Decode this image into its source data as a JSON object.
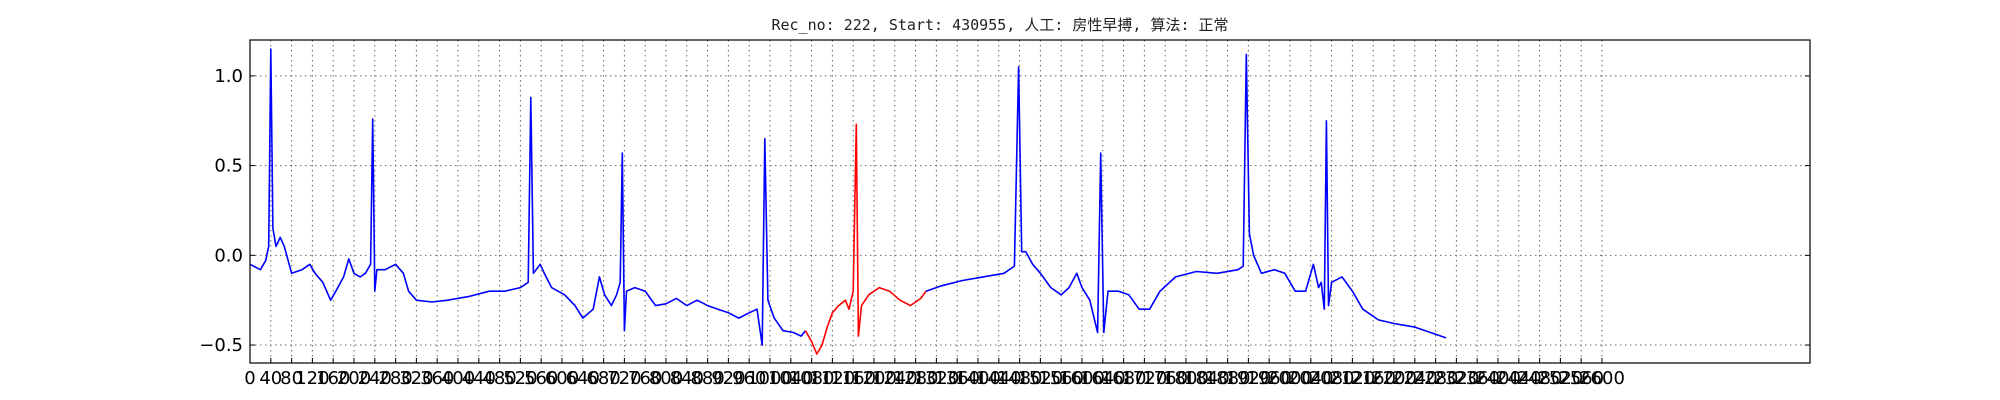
{
  "chart_data": {
    "type": "line",
    "title": "Rec_no: 222, Start: 430955, 人工: 房性早搏, 算法: 正常",
    "xlabel": "",
    "ylabel": "",
    "xlim": [
      0,
      3000
    ],
    "ylim": [
      -0.6,
      1.2
    ],
    "grid": true,
    "legend": "none",
    "yticks": [
      -0.5,
      0.0,
      0.5,
      1.0
    ],
    "ytick_labels": [
      "−0.5",
      "0.0",
      "0.5",
      "1.0"
    ],
    "xtick_labels": [
      "0",
      "40",
      "80",
      "120",
      "160",
      "200",
      "240",
      "280",
      "320",
      "360",
      "400",
      "440",
      "480",
      "520",
      "560",
      "600",
      "640",
      "680",
      "720",
      "760",
      "800",
      "840",
      "880",
      "920",
      "960",
      "1000",
      "1040",
      "1080",
      "1120",
      "1160",
      "1200",
      "1240",
      "1280",
      "1320",
      "1360",
      "1400",
      "1440",
      "1480",
      "1520",
      "1560",
      "1600",
      "1640",
      "1680",
      "1720",
      "1760",
      "1800",
      "1840",
      "1880",
      "1920",
      "1960",
      "2000",
      "2040",
      "2080",
      "2120",
      "2160",
      "2200",
      "2240",
      "2280",
      "2320",
      "2360",
      "2400",
      "2440",
      "2480",
      "2520",
      "2560",
      "2600"
    ],
    "colors": {
      "normal": "#0000ff",
      "highlight": "#ff0000"
    },
    "series": [
      {
        "color": "#0000ff",
        "points": [
          [
            0,
            -0.05
          ],
          [
            20,
            -0.08
          ],
          [
            30,
            -0.03
          ],
          [
            36,
            0.05
          ],
          [
            40,
            1.15
          ],
          [
            44,
            0.15
          ],
          [
            50,
            0.05
          ],
          [
            58,
            0.1
          ],
          [
            66,
            0.05
          ],
          [
            80,
            -0.1
          ],
          [
            100,
            -0.08
          ],
          [
            115,
            -0.05
          ],
          [
            125,
            -0.1
          ],
          [
            140,
            -0.15
          ],
          [
            155,
            -0.25
          ],
          [
            165,
            -0.2
          ],
          [
            180,
            -0.12
          ],
          [
            190,
            -0.02
          ],
          [
            200,
            -0.1
          ],
          [
            212,
            -0.12
          ],
          [
            222,
            -0.1
          ],
          [
            232,
            -0.05
          ],
          [
            236,
            0.76
          ],
          [
            240,
            -0.2
          ],
          [
            244,
            -0.08
          ],
          [
            260,
            -0.08
          ],
          [
            280,
            -0.05
          ],
          [
            295,
            -0.1
          ],
          [
            305,
            -0.2
          ],
          [
            320,
            -0.25
          ],
          [
            350,
            -0.26
          ],
          [
            380,
            -0.25
          ],
          [
            420,
            -0.23
          ],
          [
            460,
            -0.2
          ],
          [
            490,
            -0.2
          ],
          [
            520,
            -0.18
          ],
          [
            535,
            -0.15
          ],
          [
            540,
            0.88
          ],
          [
            545,
            -0.1
          ],
          [
            558,
            -0.05
          ],
          [
            566,
            -0.1
          ],
          [
            580,
            -0.18
          ],
          [
            605,
            -0.22
          ],
          [
            625,
            -0.28
          ],
          [
            640,
            -0.35
          ],
          [
            660,
            -0.3
          ],
          [
            672,
            -0.12
          ],
          [
            682,
            -0.22
          ],
          [
            695,
            -0.28
          ],
          [
            705,
            -0.22
          ],
          [
            712,
            -0.15
          ],
          [
            716,
            0.57
          ],
          [
            720,
            -0.42
          ],
          [
            724,
            -0.2
          ],
          [
            740,
            -0.18
          ],
          [
            760,
            -0.2
          ],
          [
            780,
            -0.28
          ],
          [
            800,
            -0.27
          ],
          [
            820,
            -0.24
          ],
          [
            840,
            -0.28
          ],
          [
            860,
            -0.25
          ],
          [
            880,
            -0.28
          ],
          [
            900,
            -0.3
          ],
          [
            920,
            -0.32
          ],
          [
            940,
            -0.35
          ],
          [
            960,
            -0.32
          ],
          [
            975,
            -0.3
          ],
          [
            985,
            -0.5
          ],
          [
            990,
            0.65
          ],
          [
            996,
            -0.25
          ],
          [
            1008,
            -0.35
          ],
          [
            1025,
            -0.42
          ],
          [
            1045,
            -0.43
          ],
          [
            1060,
            -0.45
          ],
          [
            1068,
            -0.42
          ]
        ]
      },
      {
        "color": "#ff0000",
        "points": [
          [
            1068,
            -0.42
          ],
          [
            1080,
            -0.48
          ],
          [
            1090,
            -0.55
          ],
          [
            1100,
            -0.5
          ],
          [
            1110,
            -0.4
          ],
          [
            1120,
            -0.32
          ],
          [
            1132,
            -0.28
          ],
          [
            1145,
            -0.25
          ],
          [
            1152,
            -0.3
          ],
          [
            1160,
            -0.2
          ],
          [
            1166,
            0.73
          ],
          [
            1170,
            -0.45
          ],
          [
            1176,
            -0.28
          ],
          [
            1190,
            -0.22
          ],
          [
            1210,
            -0.18
          ],
          [
            1230,
            -0.2
          ],
          [
            1250,
            -0.25
          ],
          [
            1270,
            -0.28
          ],
          [
            1290,
            -0.24
          ],
          [
            1300,
            -0.2
          ]
        ]
      },
      {
        "color": "#0000ff",
        "points": [
          [
            1300,
            -0.2
          ],
          [
            1330,
            -0.17
          ],
          [
            1370,
            -0.14
          ],
          [
            1410,
            -0.12
          ],
          [
            1450,
            -0.1
          ],
          [
            1470,
            -0.06
          ],
          [
            1478,
            1.05
          ],
          [
            1484,
            0.02
          ],
          [
            1492,
            0.02
          ],
          [
            1505,
            -0.05
          ],
          [
            1520,
            -0.1
          ],
          [
            1540,
            -0.18
          ],
          [
            1560,
            -0.22
          ],
          [
            1575,
            -0.18
          ],
          [
            1590,
            -0.1
          ],
          [
            1600,
            -0.18
          ],
          [
            1615,
            -0.25
          ],
          [
            1630,
            -0.43
          ],
          [
            1636,
            0.57
          ],
          [
            1642,
            -0.43
          ],
          [
            1650,
            -0.2
          ],
          [
            1670,
            -0.2
          ],
          [
            1690,
            -0.22
          ],
          [
            1710,
            -0.3
          ],
          [
            1730,
            -0.3
          ],
          [
            1750,
            -0.2
          ],
          [
            1780,
            -0.12
          ],
          [
            1820,
            -0.09
          ],
          [
            1860,
            -0.1
          ],
          [
            1900,
            -0.08
          ],
          [
            1910,
            -0.06
          ],
          [
            1916,
            1.12
          ],
          [
            1922,
            0.12
          ],
          [
            1930,
            0.0
          ],
          [
            1945,
            -0.1
          ],
          [
            1970,
            -0.08
          ],
          [
            1990,
            -0.1
          ],
          [
            2010,
            -0.2
          ],
          [
            2030,
            -0.2
          ],
          [
            2045,
            -0.05
          ],
          [
            2055,
            -0.18
          ],
          [
            2060,
            -0.15
          ],
          [
            2066,
            -0.3
          ],
          [
            2070,
            0.75
          ],
          [
            2074,
            -0.28
          ],
          [
            2080,
            -0.15
          ],
          [
            2100,
            -0.12
          ],
          [
            2120,
            -0.2
          ],
          [
            2140,
            -0.3
          ],
          [
            2170,
            -0.36
          ],
          [
            2200,
            -0.38
          ],
          [
            2240,
            -0.4
          ],
          [
            2280,
            -0.44
          ],
          [
            2300,
            -0.46
          ]
        ]
      }
    ]
  }
}
